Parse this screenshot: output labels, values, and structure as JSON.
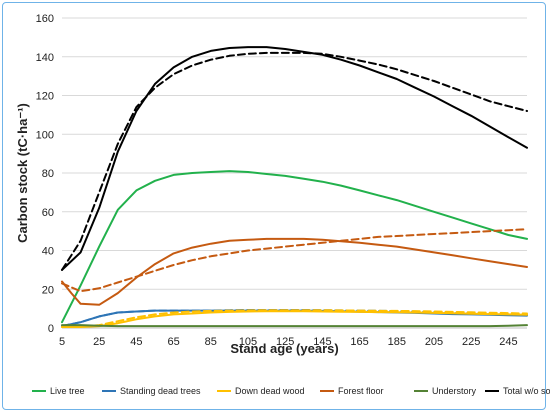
{
  "chart_data": {
    "type": "line",
    "xlabel": "Stand age (years)",
    "ylabel": "Carbon stock (tC·ha⁻¹)",
    "xticks": [
      5,
      25,
      45,
      65,
      85,
      105,
      125,
      145,
      165,
      185,
      205,
      225,
      245
    ],
    "xlim": [
      5,
      255
    ],
    "yticks": [
      0,
      20,
      40,
      60,
      80,
      100,
      120,
      140,
      160
    ],
    "ylim": [
      0,
      160
    ],
    "grid": "horizontal",
    "legend_position": "bottom",
    "legend": [
      {
        "label": "Live tree",
        "color": "#22b14c"
      },
      {
        "label": "Standing dead trees",
        "color": "#2e75b6"
      },
      {
        "label": "Down dead wood",
        "color": "#ffc000"
      },
      {
        "label": "Forest floor",
        "color": "#c55a11"
      },
      {
        "label": "Understory",
        "color": "#548235"
      },
      {
        "label": "Total w/o soil",
        "color": "#000000"
      }
    ],
    "series": [
      {
        "name": "Live tree",
        "color": "#22b14c",
        "style": "solid",
        "x": [
          5,
          15,
          25,
          35,
          45,
          55,
          65,
          75,
          85,
          95,
          105,
          115,
          125,
          135,
          145,
          155,
          165,
          175,
          185,
          195,
          205,
          215,
          225,
          235,
          245,
          255
        ],
        "y": [
          3,
          22,
          42,
          61,
          71,
          76,
          79,
          80,
          80.5,
          81,
          80.5,
          79.5,
          78.5,
          77,
          75.5,
          73.5,
          71,
          68.5,
          66,
          63,
          60,
          57,
          54,
          51,
          48,
          46
        ]
      },
      {
        "name": "Standing dead trees",
        "color": "#2e75b6",
        "style": "solid",
        "x": [
          5,
          15,
          25,
          35,
          45,
          55,
          65,
          75,
          85,
          95,
          105,
          115,
          125,
          135,
          145,
          155,
          165,
          175,
          185,
          195,
          205,
          215,
          225,
          235,
          245,
          255
        ],
        "y": [
          1,
          3,
          6,
          8,
          8.5,
          9,
          9,
          9,
          9,
          9,
          9,
          9,
          9,
          9,
          8.8,
          8.6,
          8.4,
          8.2,
          8,
          7.8,
          7.5,
          7.2,
          7,
          6.8,
          6.6,
          6.4
        ]
      },
      {
        "name": "Standing dead trees (dashed)",
        "color": "#2e75b6",
        "style": "dashed",
        "x": [
          5,
          15,
          25,
          35,
          45,
          55,
          65,
          75,
          85,
          95,
          105,
          115,
          125,
          135,
          145,
          155,
          165,
          175,
          185,
          195,
          205,
          215,
          225,
          235,
          245,
          255
        ],
        "y": [
          1,
          3,
          6,
          8,
          8.5,
          9,
          9,
          9,
          9,
          9.2,
          9.3,
          9.3,
          9.3,
          9.3,
          9.2,
          9.1,
          9,
          8.9,
          8.7,
          8.5,
          8.2,
          7.9,
          7.6,
          7.3,
          7,
          6.8
        ]
      },
      {
        "name": "Down dead wood",
        "color": "#ffc000",
        "style": "solid",
        "x": [
          5,
          15,
          25,
          35,
          45,
          55,
          65,
          75,
          85,
          95,
          105,
          115,
          125,
          135,
          145,
          155,
          165,
          175,
          185,
          195,
          205,
          215,
          225,
          235,
          245,
          255
        ],
        "y": [
          0.5,
          0.5,
          1,
          2.5,
          4.5,
          6,
          7,
          7.5,
          8,
          8.3,
          8.5,
          8.6,
          8.6,
          8.6,
          8.5,
          8.4,
          8.3,
          8.2,
          8.1,
          8,
          7.8,
          7.6,
          7.4,
          7.2,
          7,
          6.8
        ]
      },
      {
        "name": "Down dead wood (dashed)",
        "color": "#ffc000",
        "style": "dashed",
        "x": [
          5,
          15,
          25,
          35,
          45,
          55,
          65,
          75,
          85,
          95,
          105,
          115,
          125,
          135,
          145,
          155,
          165,
          175,
          185,
          195,
          205,
          215,
          225,
          235,
          245,
          255
        ],
        "y": [
          0.5,
          0.5,
          1.5,
          3.5,
          5.5,
          7,
          8,
          8.5,
          8.8,
          9,
          9.1,
          9.2,
          9.2,
          9.2,
          9.2,
          9.1,
          9,
          8.9,
          8.8,
          8.7,
          8.5,
          8.3,
          8.1,
          7.9,
          7.7,
          7.5
        ]
      },
      {
        "name": "Forest floor",
        "color": "#c55a11",
        "style": "solid",
        "x": [
          5,
          10,
          15,
          25,
          35,
          45,
          55,
          65,
          75,
          85,
          95,
          105,
          115,
          125,
          135,
          145,
          155,
          165,
          175,
          185,
          195,
          205,
          215,
          225,
          235,
          245,
          255
        ],
        "y": [
          24,
          18,
          12.5,
          12,
          18,
          26,
          33,
          38.5,
          41.5,
          43.5,
          45,
          45.5,
          46,
          46,
          46,
          45.5,
          44.8,
          44,
          43,
          42,
          40.5,
          39,
          37.5,
          36,
          34.5,
          33,
          31.5
        ]
      },
      {
        "name": "Forest floor (dashed)",
        "color": "#c55a11",
        "style": "dashed",
        "x": [
          5,
          15,
          25,
          35,
          45,
          55,
          65,
          75,
          85,
          95,
          105,
          115,
          125,
          135,
          145,
          155,
          165,
          175,
          185,
          195,
          205,
          215,
          225,
          235,
          245,
          255
        ],
        "y": [
          23,
          19,
          20.5,
          23.5,
          26.5,
          29.5,
          32.5,
          35,
          37,
          38.5,
          40,
          41,
          42,
          43,
          44,
          45,
          46,
          47,
          47.5,
          48,
          48.5,
          49,
          49.5,
          50,
          50.5,
          51
        ]
      },
      {
        "name": "Understory",
        "color": "#548235",
        "style": "solid",
        "x": [
          5,
          15,
          25,
          35,
          45,
          55,
          65,
          75,
          85,
          95,
          105,
          115,
          125,
          135,
          145,
          155,
          165,
          175,
          185,
          195,
          205,
          215,
          225,
          235,
          245,
          255
        ],
        "y": [
          1.5,
          1.5,
          1.2,
          1,
          1,
          1,
          1,
          1,
          1,
          1,
          1,
          1,
          1,
          1,
          1,
          1,
          1,
          1,
          1,
          1,
          1,
          1,
          1,
          1,
          1.2,
          1.5
        ]
      },
      {
        "name": "Total w/o soil",
        "color": "#000000",
        "style": "solid",
        "x": [
          5,
          15,
          25,
          35,
          45,
          55,
          65,
          75,
          85,
          95,
          105,
          115,
          125,
          135,
          145,
          155,
          165,
          175,
          185,
          195,
          205,
          215,
          225,
          235,
          245,
          255
        ],
        "y": [
          30,
          39,
          62,
          91,
          112,
          126,
          134.5,
          140,
          143,
          144.5,
          145,
          145,
          144,
          142.5,
          141,
          138.5,
          135.5,
          132,
          128.5,
          124,
          119.5,
          114.5,
          109.5,
          104,
          98.5,
          93
        ]
      },
      {
        "name": "Total w/o soil (dashed)",
        "color": "#000000",
        "style": "dashed",
        "x": [
          5,
          15,
          25,
          35,
          45,
          55,
          65,
          75,
          85,
          95,
          105,
          115,
          125,
          135,
          145,
          155,
          165,
          175,
          185,
          195,
          205,
          215,
          225,
          235,
          245,
          255
        ],
        "y": [
          30,
          45,
          70,
          95,
          114,
          124,
          131,
          135.5,
          138.5,
          140.5,
          141.5,
          142,
          142,
          142,
          141.5,
          140,
          138,
          136,
          133.5,
          130.5,
          127.5,
          124,
          120.5,
          117,
          114.5,
          112
        ]
      }
    ]
  }
}
